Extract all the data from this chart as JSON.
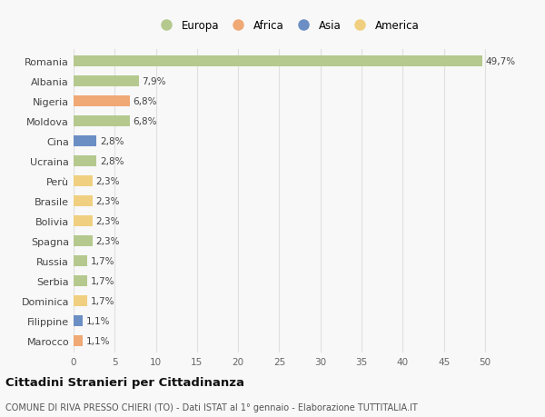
{
  "countries": [
    "Romania",
    "Albania",
    "Nigeria",
    "Moldova",
    "Cina",
    "Ucraina",
    "Perù",
    "Brasile",
    "Bolivia",
    "Spagna",
    "Russia",
    "Serbia",
    "Dominica",
    "Filippine",
    "Marocco"
  ],
  "values": [
    49.7,
    7.9,
    6.8,
    6.8,
    2.8,
    2.8,
    2.3,
    2.3,
    2.3,
    2.3,
    1.7,
    1.7,
    1.7,
    1.1,
    1.1
  ],
  "labels": [
    "49,7%",
    "7,9%",
    "6,8%",
    "6,8%",
    "2,8%",
    "2,8%",
    "2,3%",
    "2,3%",
    "2,3%",
    "2,3%",
    "1,7%",
    "1,7%",
    "1,7%",
    "1,1%",
    "1,1%"
  ],
  "continents": [
    "Europa",
    "Europa",
    "Africa",
    "Europa",
    "Asia",
    "Europa",
    "America",
    "America",
    "America",
    "Europa",
    "Europa",
    "Europa",
    "America",
    "Asia",
    "Africa"
  ],
  "colors": {
    "Europa": "#b5c98e",
    "Africa": "#f0a875",
    "Asia": "#6b8fc4",
    "America": "#f0d080"
  },
  "legend_order": [
    "Europa",
    "Africa",
    "Asia",
    "America"
  ],
  "title": "Cittadini Stranieri per Cittadinanza",
  "subtitle": "COMUNE DI RIVA PRESSO CHIERI (TO) - Dati ISTAT al 1° gennaio - Elaborazione TUTTITALIA.IT",
  "xlim": [
    0,
    52
  ],
  "xticks": [
    0,
    5,
    10,
    15,
    20,
    25,
    30,
    35,
    40,
    45,
    50
  ],
  "background_color": "#f8f8f8",
  "grid_color": "#e0e0e0"
}
